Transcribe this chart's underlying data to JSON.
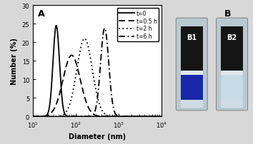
{
  "title_A": "A",
  "title_B": "B",
  "xlabel": "Diameter (nm)",
  "ylabel": "Number (%)",
  "xlim_log": [
    1,
    4
  ],
  "ylim": [
    0,
    30
  ],
  "yticks": [
    0,
    5,
    10,
    15,
    20,
    25,
    30
  ],
  "curves": [
    {
      "label": "t=0",
      "linestyle": "solid",
      "peak": 35,
      "sigma_log": 0.075,
      "amplitude": 24.5,
      "color": "black",
      "lw": 1.3
    },
    {
      "label": "t=0.5 h",
      "linestyle": "dashed",
      "peak": 80,
      "sigma_log": 0.2,
      "amplitude": 16.5,
      "color": "black",
      "lw": 1.3
    },
    {
      "label": "t=2 h",
      "linestyle": "dotted",
      "peak": 160,
      "sigma_log": 0.18,
      "amplitude": 21.0,
      "color": "black",
      "lw": 1.3
    },
    {
      "label": "t=6 h",
      "linestyle": "dashdot",
      "peak": 470,
      "sigma_log": 0.095,
      "amplitude": 23.8,
      "color": "black",
      "lw": 1.3
    }
  ],
  "fig_bg": "#d8d8d8",
  "plot_bg": "#ffffff",
  "B1_label": "B1",
  "B2_label": "B2",
  "vial_bg": "#c8d8d8",
  "vial_top_dark": "#181818",
  "vial_bottom_blue1": "#2030a0",
  "vial_bottom_blue2": "#c0d8e8",
  "vial_edge": "#888888"
}
